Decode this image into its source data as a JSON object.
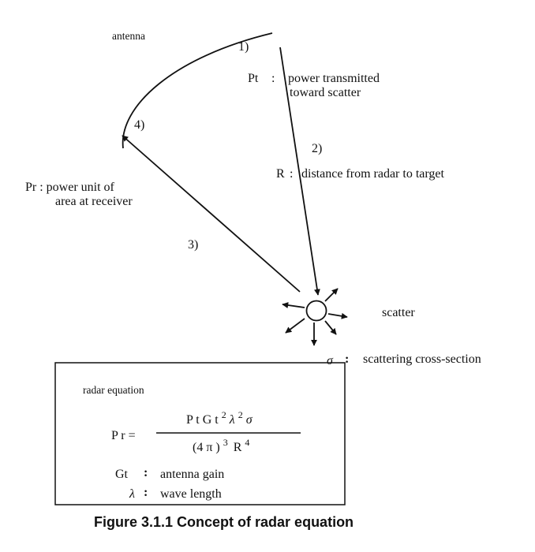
{
  "diagram": {
    "antenna_label": "antenna",
    "steps": {
      "s1": "1)",
      "s2": "2)",
      "s3": "3)",
      "s4": "4)"
    },
    "pt": {
      "symbol": "Pt",
      "colon": ":",
      "desc_line1": "power transmitted",
      "desc_line2": "toward scatter"
    },
    "r": {
      "symbol": "R",
      "colon": ":",
      "desc": "distance from radar to target"
    },
    "pr": {
      "line1": "Pr : power  unit of",
      "line2": "area at receiver"
    },
    "scatter_label": "scatter",
    "sigma": {
      "symbol": "σ",
      "colon": ":",
      "desc": "scattering cross-section"
    }
  },
  "equation_box": {
    "title": "radar equation",
    "lhs": "P r  =",
    "numerator": {
      "base": "P t G t",
      "exp1": "2",
      "lambda": "λ",
      "exp2": "2",
      "sigma": "σ"
    },
    "denominator": {
      "base": "(4 π )",
      "exp1": "3",
      "r": "R",
      "exp2": "4"
    },
    "defs": [
      {
        "symbol": "Gt",
        "colon": ":",
        "desc": "antenna gain"
      },
      {
        "symbol": "λ",
        "colon": ":",
        "desc": "wave length"
      }
    ]
  },
  "caption": "Figure 3.1.1  Concept of radar equation"
}
